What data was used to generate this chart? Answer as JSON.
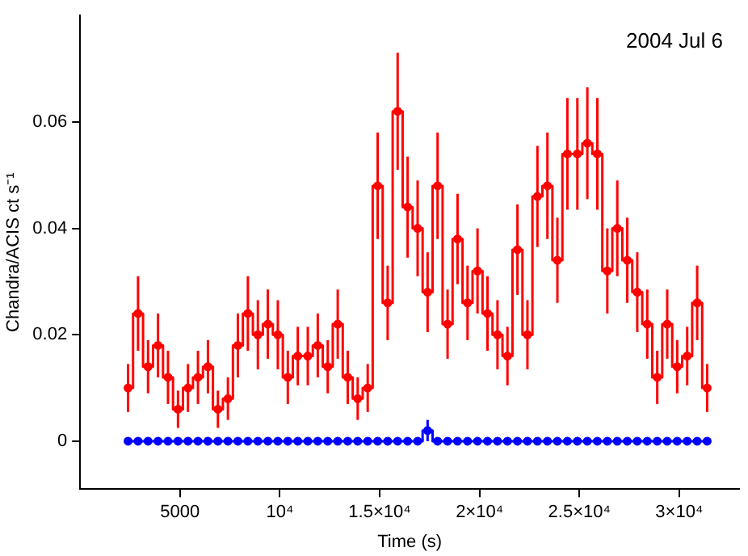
{
  "chart_data": {
    "type": "step",
    "xlabel": "Time (s)",
    "ylabel": "Chandra/ACIS ct s⁻¹",
    "annotations": [
      "2004 Jul 6"
    ],
    "x": [
      2400,
      2900,
      3400,
      3900,
      4400,
      4900,
      5400,
      5900,
      6400,
      6900,
      7400,
      7900,
      8400,
      8900,
      9400,
      9900,
      10400,
      10900,
      11400,
      11900,
      12400,
      12900,
      13400,
      13900,
      14400,
      14900,
      15400,
      15900,
      16400,
      16900,
      17400,
      17900,
      18400,
      18900,
      19400,
      19900,
      20400,
      20900,
      21400,
      21900,
      22400,
      22900,
      23400,
      23900,
      24400,
      24900,
      25400,
      25900,
      26400,
      26900,
      27400,
      27900,
      28400,
      28900,
      29400,
      29900,
      30400,
      30900,
      31400
    ],
    "series": [
      {
        "color": "#ff0000",
        "values": [
          0.01,
          0.024,
          0.014,
          0.018,
          0.012,
          0.006,
          0.01,
          0.012,
          0.014,
          0.006,
          0.008,
          0.018,
          0.024,
          0.02,
          0.022,
          0.02,
          0.012,
          0.016,
          0.016,
          0.018,
          0.014,
          0.022,
          0.012,
          0.008,
          0.01,
          0.048,
          0.026,
          0.062,
          0.044,
          0.04,
          0.028,
          0.048,
          0.022,
          0.038,
          0.026,
          0.032,
          0.024,
          0.02,
          0.016,
          0.036,
          0.02,
          0.046,
          0.048,
          0.034,
          0.054,
          0.054,
          0.056,
          0.054,
          0.032,
          0.04,
          0.034,
          0.028,
          0.022,
          0.012,
          0.022,
          0.014,
          0.016,
          0.026,
          0.01
        ],
        "errors": [
          0.0045,
          0.007,
          0.005,
          0.006,
          0.005,
          0.0035,
          0.0045,
          0.005,
          0.005,
          0.0035,
          0.004,
          0.006,
          0.007,
          0.0065,
          0.0065,
          0.0065,
          0.005,
          0.0055,
          0.0055,
          0.006,
          0.005,
          0.0065,
          0.005,
          0.004,
          0.0045,
          0.01,
          0.007,
          0.011,
          0.0095,
          0.009,
          0.0075,
          0.01,
          0.0065,
          0.0085,
          0.007,
          0.008,
          0.007,
          0.0065,
          0.0055,
          0.0085,
          0.0065,
          0.0095,
          0.01,
          0.008,
          0.0105,
          0.0105,
          0.0105,
          0.0105,
          0.008,
          0.009,
          0.008,
          0.0075,
          0.0065,
          0.005,
          0.0065,
          0.005,
          0.0055,
          0.007,
          0.0045
        ]
      },
      {
        "color": "#0000ff",
        "values": [
          0,
          0,
          0,
          0,
          0,
          0,
          0,
          0,
          0,
          0,
          0,
          0,
          0,
          0,
          0,
          0,
          0,
          0,
          0,
          0,
          0,
          0,
          0,
          0,
          0,
          0,
          0,
          0,
          0,
          0,
          0.002,
          0,
          0,
          0,
          0,
          0,
          0,
          0,
          0,
          0,
          0,
          0,
          0,
          0,
          0,
          0,
          0,
          0,
          0,
          0,
          0,
          0,
          0,
          0,
          0,
          0,
          0,
          0,
          0
        ],
        "errors": [
          null,
          null,
          null,
          null,
          null,
          null,
          null,
          null,
          null,
          null,
          null,
          null,
          null,
          null,
          null,
          null,
          null,
          null,
          null,
          null,
          null,
          null,
          null,
          null,
          null,
          null,
          null,
          null,
          null,
          null,
          0.002,
          null,
          null,
          null,
          null,
          null,
          null,
          null,
          null,
          null,
          null,
          null,
          null,
          null,
          null,
          null,
          null,
          null,
          null,
          null,
          null,
          null,
          null,
          null,
          null,
          null,
          null,
          null,
          null
        ]
      }
    ],
    "xlim": [
      0,
      33000
    ],
    "ylim": [
      -0.009,
      0.08
    ],
    "xticks": [
      {
        "value": 5000,
        "label": "5000"
      },
      {
        "value": 10000,
        "label": "10⁴"
      },
      {
        "value": 15000,
        "label": "1.5×10⁴"
      },
      {
        "value": 20000,
        "label": "2×10⁴"
      },
      {
        "value": 25000,
        "label": "2.5×10⁴"
      },
      {
        "value": 30000,
        "label": "3×10⁴"
      }
    ],
    "yticks": [
      {
        "value": 0,
        "label": "0"
      },
      {
        "value": 0.02,
        "label": "0.02"
      },
      {
        "value": 0.04,
        "label": "0.04"
      },
      {
        "value": 0.06,
        "label": "0.06"
      }
    ],
    "grid": false,
    "legend": false,
    "marker": "circle",
    "line_style": "solid"
  }
}
